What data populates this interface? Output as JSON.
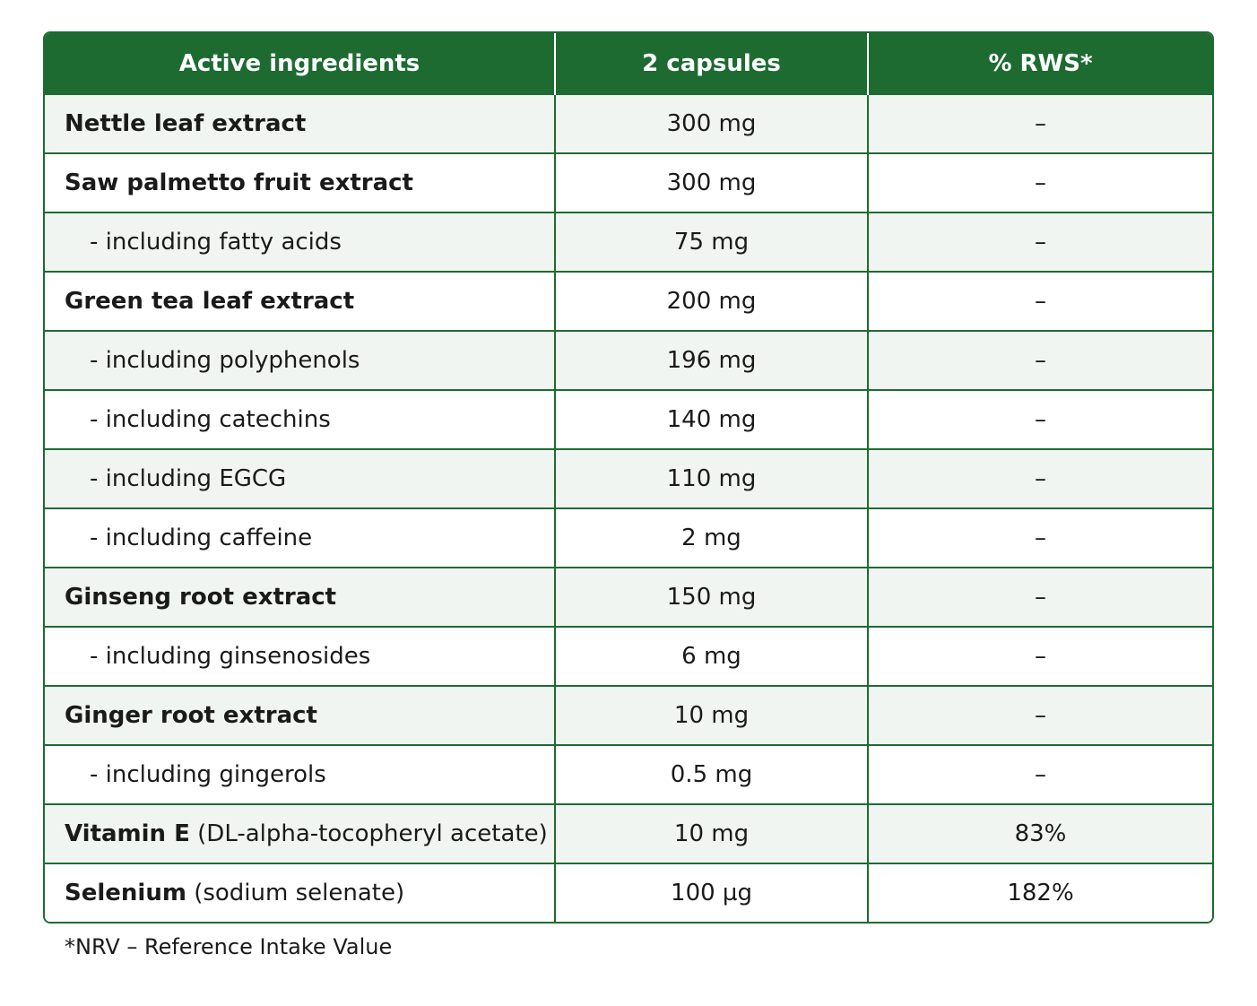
{
  "table": {
    "headers": {
      "ingredient": "Active ingredients",
      "amount": "2 capsules",
      "rws": "% RWS*"
    },
    "rows": [
      {
        "name": "Nettle leaf extract",
        "qualifier": "",
        "amount": "300 mg",
        "rws": "–",
        "sub": false,
        "shade": true
      },
      {
        "name": "Saw palmetto fruit extract",
        "qualifier": "",
        "amount": "300 mg",
        "rws": "–",
        "sub": false,
        "shade": false
      },
      {
        "name": "- including fatty acids",
        "qualifier": "",
        "amount": "75 mg",
        "rws": "–",
        "sub": true,
        "shade": true
      },
      {
        "name": "Green tea leaf extract",
        "qualifier": "",
        "amount": "200 mg",
        "rws": "–",
        "sub": false,
        "shade": false
      },
      {
        "name": "- including polyphenols",
        "qualifier": "",
        "amount": "196 mg",
        "rws": "–",
        "sub": true,
        "shade": true
      },
      {
        "name": "- including catechins",
        "qualifier": "",
        "amount": "140 mg",
        "rws": "–",
        "sub": true,
        "shade": false
      },
      {
        "name": "- including EGCG",
        "qualifier": "",
        "amount": "110 mg",
        "rws": "–",
        "sub": true,
        "shade": true
      },
      {
        "name": "- including caffeine",
        "qualifier": "",
        "amount": "2 mg",
        "rws": "–",
        "sub": true,
        "shade": false
      },
      {
        "name": "Ginseng root extract",
        "qualifier": "",
        "amount": "150 mg",
        "rws": "–",
        "sub": false,
        "shade": true
      },
      {
        "name": "- including ginsenosides",
        "qualifier": "",
        "amount": "6 mg",
        "rws": "–",
        "sub": true,
        "shade": false
      },
      {
        "name": "Ginger root extract",
        "qualifier": "",
        "amount": "10 mg",
        "rws": "–",
        "sub": false,
        "shade": true
      },
      {
        "name": "- including gingerols",
        "qualifier": "",
        "amount": "0.5 mg",
        "rws": "–",
        "sub": true,
        "shade": false
      },
      {
        "name": "Vitamin E",
        "qualifier": "(DL-alpha-tocopheryl acetate)",
        "amount": "10 mg",
        "rws": "83%",
        "sub": false,
        "shade": true
      },
      {
        "name": "Selenium",
        "qualifier": "(sodium selenate)",
        "amount": "100 µg",
        "rws": "182%",
        "sub": false,
        "shade": false
      }
    ]
  },
  "footnote": "*NRV – Reference Intake Value",
  "colors": {
    "header_bg": "#1e6b32",
    "border": "#1e6b32",
    "row_shade": "#f1f5f1"
  }
}
